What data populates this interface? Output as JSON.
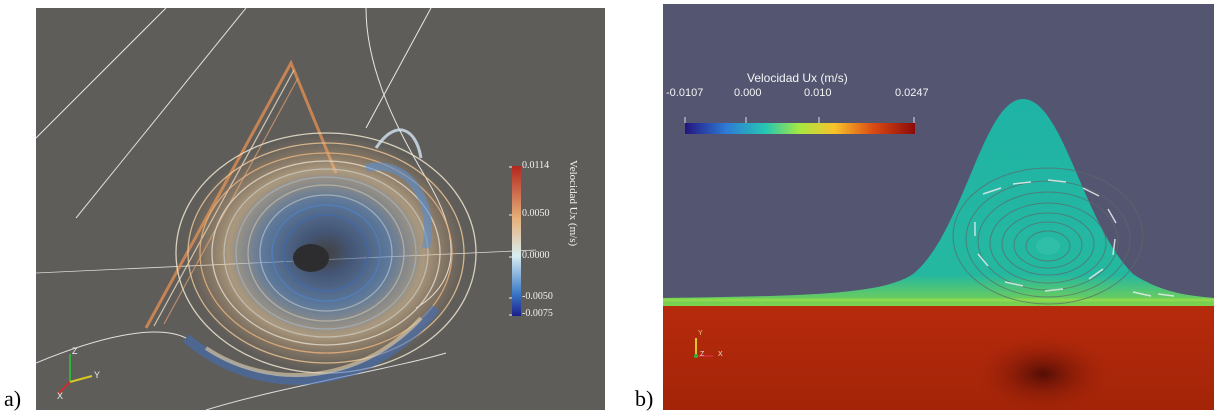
{
  "panel_a": {
    "letter": "a)",
    "colorbar": {
      "title": "Velocidad Ux (m/s)",
      "ticks": [
        "0.0114",
        "0.0050",
        "0.0000",
        "-0.0050",
        "-0.0075"
      ],
      "colors": [
        "#b3261e",
        "#e7b07a",
        "#d9eef2",
        "#3b78c6",
        "#1a1f8c"
      ]
    },
    "axes": {
      "z": "Z",
      "x": "X",
      "y": "Y"
    }
  },
  "panel_b": {
    "letter": "b)",
    "colorbar": {
      "title": "Velocidad Ux (m/s)",
      "ticks": [
        "-0.0107",
        "0.000",
        "0.010",
        "0.0247"
      ],
      "colors": [
        "#24157e",
        "#2d7bd6",
        "#26c6b3",
        "#a7e840",
        "#f9c22b",
        "#d94a12",
        "#8c0a0a"
      ]
    },
    "axes": {
      "y": "Y",
      "z": "Z",
      "x": "X"
    }
  }
}
